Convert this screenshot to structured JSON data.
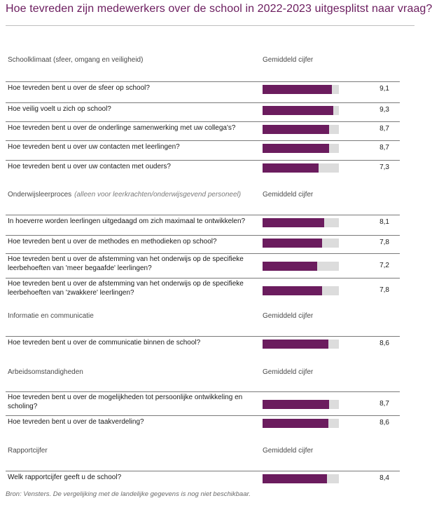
{
  "title": "Hoe tevreden zijn medewerkers over de school in 2022-2023 uitgesplitst naar vraag?",
  "source": "Bron: Vensters. De vergelijking met de landelijke gegevens is nog niet beschikbaar.",
  "colors": {
    "bar": "#6b1c5e",
    "track": "#dcdcdc",
    "title": "#6b1c5e"
  },
  "chart_data": {
    "type": "bar",
    "orientation": "horizontal",
    "xlim": [
      0,
      10
    ],
    "value_column_label": "Gemiddeld cijfer",
    "sections": [
      {
        "title": "Schoolklimaat (sfeer, omgang en veiligheid)",
        "note": "",
        "column_header": "Gemiddeld cijfer",
        "items": [
          {
            "question": "Hoe tevreden bent u over de sfeer op school?",
            "value": 9.1,
            "label": "9,1"
          },
          {
            "question": "Hoe veilig voelt u zich op school?",
            "value": 9.3,
            "label": "9,3"
          },
          {
            "question": "Hoe tevreden bent u over de onderlinge samenwerking met uw collega's?",
            "value": 8.7,
            "label": "8,7"
          },
          {
            "question": "Hoe tevreden bent u over uw contacten met leerlingen?",
            "value": 8.7,
            "label": "8,7"
          },
          {
            "question": "Hoe tevreden bent u over uw contacten met ouders?",
            "value": 7.3,
            "label": "7,3"
          }
        ]
      },
      {
        "title": "Onderwijsleerproces",
        "note": "(alleen voor leerkrachten/onderwijsgevend personeel)",
        "column_header": "Gemiddeld cijfer",
        "items": [
          {
            "question": "In hoeverre worden leerlingen uitgedaagd om zich maximaal te ontwikkelen?",
            "value": 8.1,
            "label": "8,1"
          },
          {
            "question": "Hoe tevreden bent u over de methodes en methodieken op school?",
            "value": 7.8,
            "label": "7,8"
          },
          {
            "question": "Hoe tevreden bent u over de afstemming van het onderwijs op de specifieke leerbehoeften van 'meer begaafde' leerlingen?",
            "value": 7.2,
            "label": "7,2"
          },
          {
            "question": "Hoe tevreden bent u over de afstemming van het onderwijs op de specifieke leerbehoeften van 'zwakkere' leerlingen?",
            "value": 7.8,
            "label": "7,8"
          }
        ]
      },
      {
        "title": "Informatie en communicatie",
        "note": "",
        "column_header": "Gemiddeld cijfer",
        "items": [
          {
            "question": "Hoe tevreden bent u over de communicatie binnen de school?",
            "value": 8.6,
            "label": "8,6"
          }
        ]
      },
      {
        "title": "Arbeidsomstandigheden",
        "note": "",
        "column_header": "Gemiddeld cijfer",
        "items": [
          {
            "question": "Hoe tevreden bent u over de mogelijkheden tot persoonlijke ontwikkeling en scholing?",
            "value": 8.7,
            "label": "8,7"
          },
          {
            "question": "Hoe tevreden bent u over de taakverdeling?",
            "value": 8.6,
            "label": "8,6"
          }
        ]
      },
      {
        "title": "Rapportcijfer",
        "note": "",
        "column_header": "Gemiddeld cijfer",
        "items": [
          {
            "question": "Welk rapportcijfer geeft u de school?",
            "value": 8.4,
            "label": "8,4"
          }
        ]
      }
    ]
  }
}
